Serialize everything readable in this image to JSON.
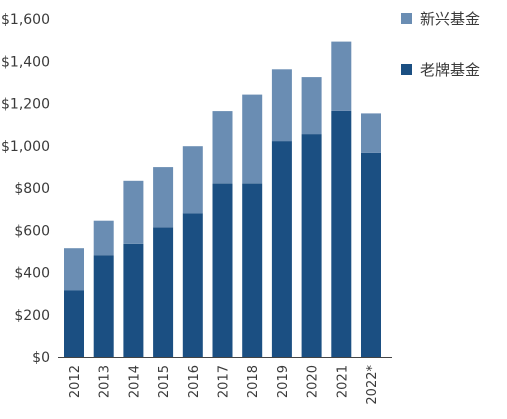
{
  "chart_data": {
    "type": "bar",
    "stacked": true,
    "categories": [
      "2012",
      "2013",
      "2014",
      "2015",
      "2016",
      "2017",
      "2018",
      "2019",
      "2020",
      "2021",
      "2022*"
    ],
    "series": [
      {
        "name": "老牌基金",
        "color": "#1b4f82",
        "values": [
          315,
          482,
          536,
          614,
          680,
          822,
          822,
          1022,
          1055,
          1165,
          966
        ]
      },
      {
        "name": "新兴基金",
        "color": "#6a8db3",
        "values": [
          200,
          163,
          298,
          285,
          318,
          342,
          420,
          340,
          270,
          328,
          187
        ]
      }
    ],
    "yticks": [
      "$0",
      "$200",
      "$400",
      "$600",
      "$800",
      "$1,000",
      "$1,200",
      "$1,400",
      "$1,600"
    ],
    "ylim": [
      0,
      1600
    ],
    "grid": false,
    "legend_position": "top-right",
    "legend_order": [
      "新兴基金",
      "老牌基金"
    ]
  }
}
